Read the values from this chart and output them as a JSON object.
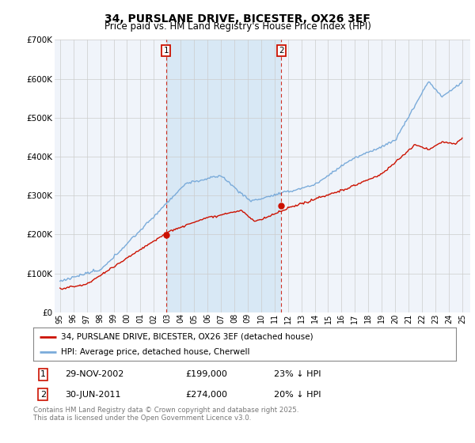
{
  "title": "34, PURSLANE DRIVE, BICESTER, OX26 3EF",
  "subtitle": "Price paid vs. HM Land Registry's House Price Index (HPI)",
  "hpi_color": "#7aabda",
  "price_color": "#cc1100",
  "vline_color": "#cc1100",
  "shade_color": "#d8e8f5",
  "bg_color": "#ffffff",
  "plot_bg_color": "#f0f4fa",
  "grid_color": "#cccccc",
  "ylim": [
    0,
    700000
  ],
  "yticks": [
    0,
    100000,
    200000,
    300000,
    400000,
    500000,
    600000,
    700000
  ],
  "ytick_labels": [
    "£0",
    "£100K",
    "£200K",
    "£300K",
    "£400K",
    "£500K",
    "£600K",
    "£700K"
  ],
  "purchase1_year": 2002.91,
  "purchase1_price": 199000,
  "purchase1_label": "1",
  "purchase1_date": "29-NOV-2002",
  "purchase1_pct": "23% ↓ HPI",
  "purchase2_year": 2011.5,
  "purchase2_price": 274000,
  "purchase2_label": "2",
  "purchase2_date": "30-JUN-2011",
  "purchase2_pct": "20% ↓ HPI",
  "legend_line1": "34, PURSLANE DRIVE, BICESTER, OX26 3EF (detached house)",
  "legend_line2": "HPI: Average price, detached house, Cherwell",
  "footer": "Contains HM Land Registry data © Crown copyright and database right 2025.\nThis data is licensed under the Open Government Licence v3.0.",
  "xlim_start": 1994.6,
  "xlim_end": 2025.6,
  "xtick_start": 1995,
  "xtick_end": 2025
}
